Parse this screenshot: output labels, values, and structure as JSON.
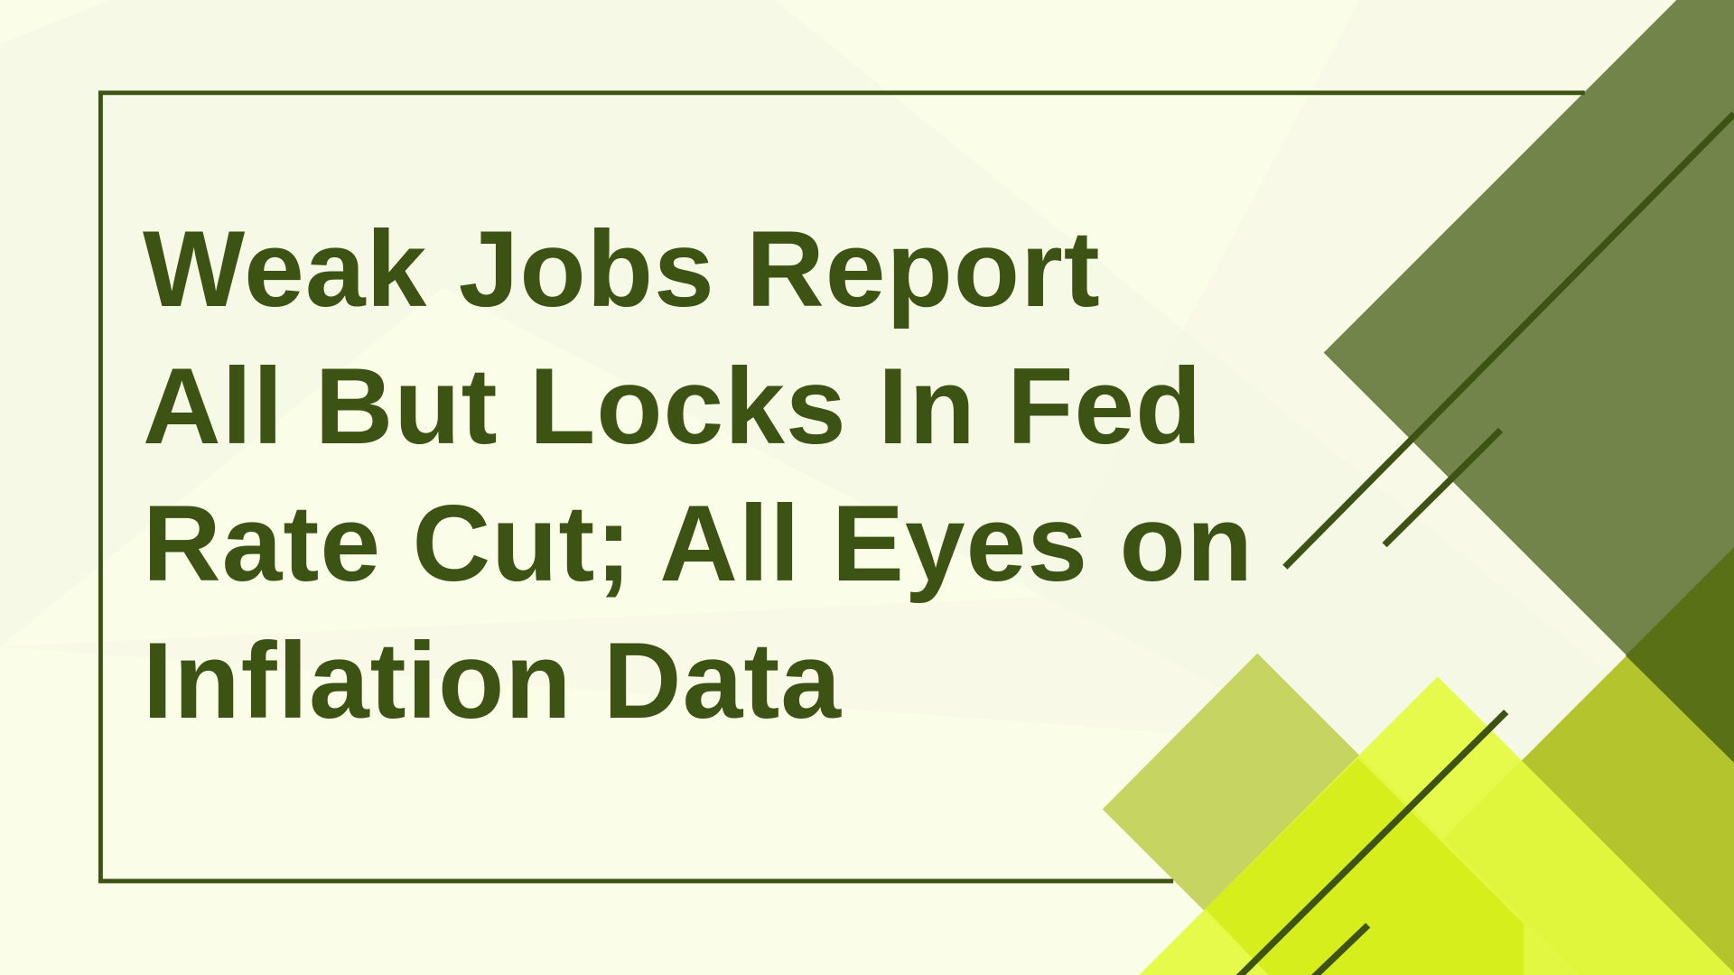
{
  "headline": {
    "lines": [
      "Weak Jobs Report",
      "All But Locks In Fed",
      "Rate Cut; All Eyes on",
      "Inflation Data"
    ]
  },
  "colors": {
    "background": "#fafde8",
    "text": "#3d5314",
    "frame": "#3d5314",
    "olive": "#72844a",
    "dark_olive": "#5a7017",
    "yellow_green": "#b3c42c",
    "light_olive": "#c6d462",
    "bright_yellow": "#e4fa3e"
  }
}
